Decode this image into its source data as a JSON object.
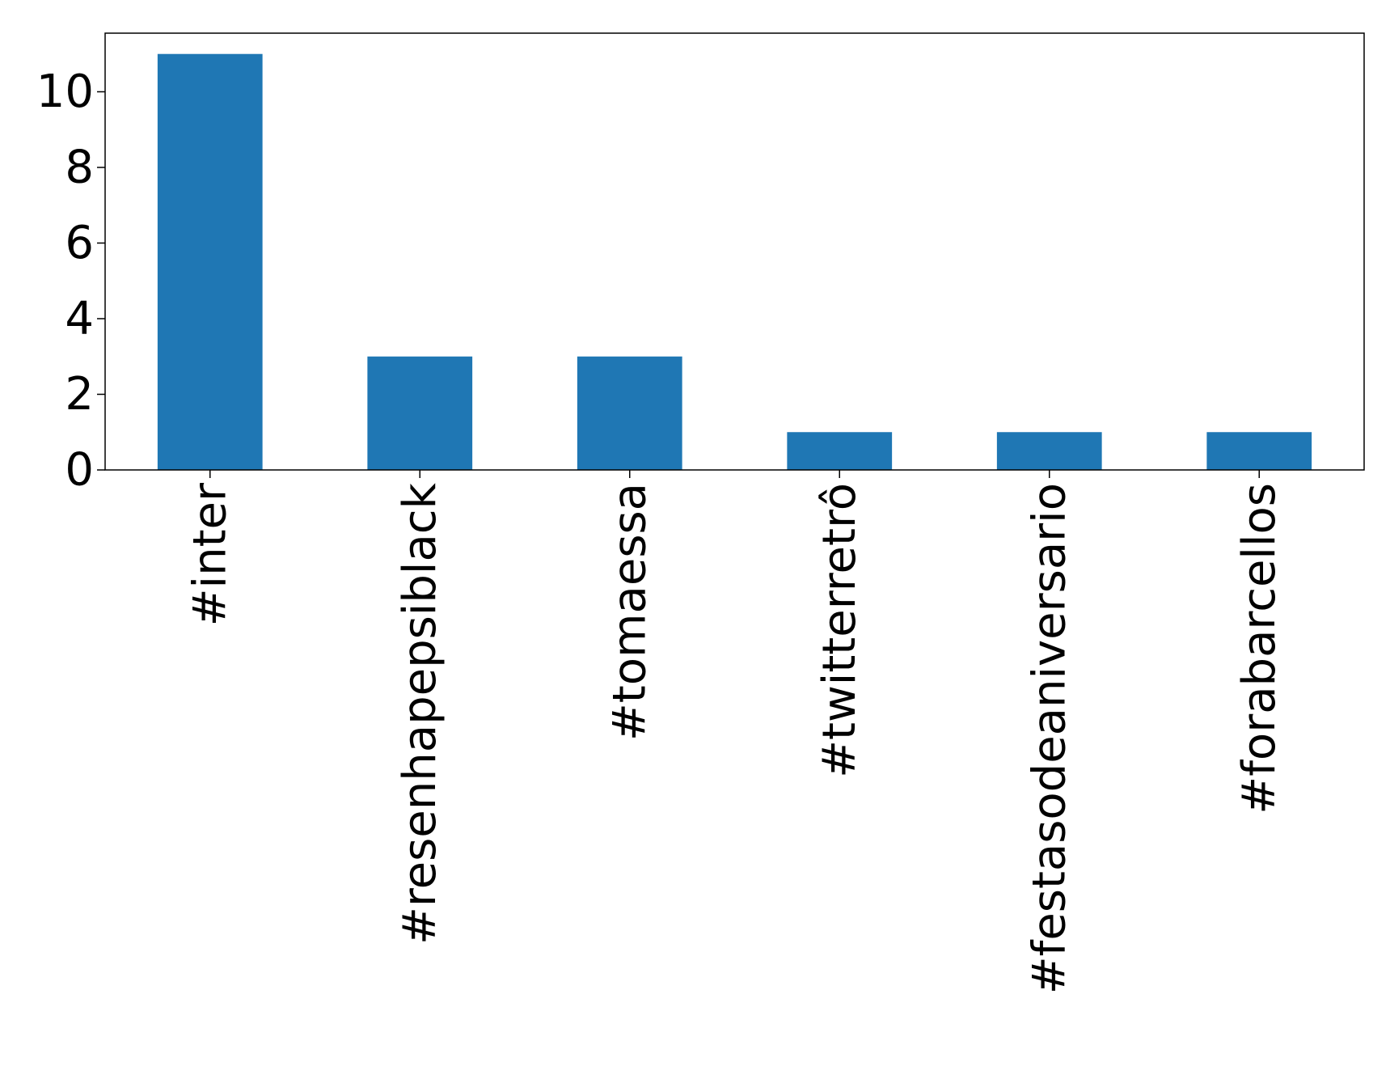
{
  "chart_data": {
    "type": "bar",
    "title": "",
    "xlabel": "",
    "ylabel": "",
    "categories": [
      "#inter",
      "#resenhapepsiblack",
      "#tomaessa",
      "#twitterretrô",
      "#festasodeaniversario",
      "#forabarcellos"
    ],
    "values": [
      11,
      3,
      3,
      1,
      1,
      1
    ],
    "ylim": [
      0,
      11.55
    ],
    "yticks": [
      0,
      2,
      4,
      6,
      8,
      10
    ],
    "grid": false,
    "legend": "none",
    "bar_color": "#1f77b4",
    "x_tick_rotation": "vertical"
  }
}
